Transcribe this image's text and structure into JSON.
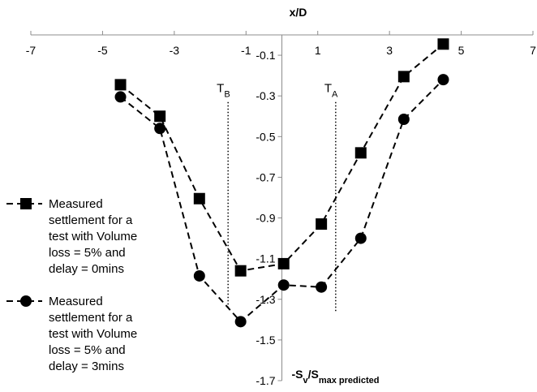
{
  "chart_data": {
    "type": "line",
    "xlabel": "x/D",
    "ylabel": {
      "prefix": "-S",
      "sub1": "v",
      "mid": "/S",
      "sub2": "max predicted"
    },
    "xlim": [
      -7,
      7
    ],
    "ylim": [
      -1.7,
      0
    ],
    "x_ticks": [
      -7,
      -5,
      -3,
      -1,
      1,
      3,
      5,
      7
    ],
    "x_tick_labels": [
      "-7",
      "-5",
      "-3",
      "-1",
      "1",
      "3",
      "5",
      "7"
    ],
    "y_ticks": [
      -0.1,
      -0.3,
      -0.5,
      -0.7,
      -0.9,
      -1.1,
      -1.3,
      -1.5,
      -1.7
    ],
    "y_tick_labels": [
      "-0.1",
      "-0.3",
      "-0.5",
      "-0.7",
      "-0.9",
      "-1.1",
      "-1.3",
      "-1.5",
      "-1.7"
    ],
    "annotations": [
      {
        "name": "tb",
        "main": "T",
        "sub": "B",
        "x": -1.5,
        "y_top": -0.33,
        "y_bottom": -1.35
      },
      {
        "name": "ta",
        "main": "T",
        "sub": "A",
        "x": 1.5,
        "y_top": -0.33,
        "y_bottom": -1.36
      }
    ],
    "legend_position": "left",
    "series": [
      {
        "marker": "square",
        "legend_lines": [
          "Measured",
          "settlement for a",
          "test with Volume",
          "loss = 5% and",
          "delay = 0mins"
        ],
        "x": [
          -4.5,
          -3.4,
          -2.3,
          -1.15,
          0.05,
          1.1,
          2.2,
          3.4,
          4.5
        ],
        "y": [
          -0.245,
          -0.4,
          -0.805,
          -1.16,
          -1.125,
          -0.93,
          -0.58,
          -0.205,
          -0.045
        ]
      },
      {
        "marker": "circle",
        "legend_lines": [
          "Measured",
          "settlement for a",
          "test with Volume",
          "loss = 5% and",
          "delay = 3mins"
        ],
        "x": [
          -4.5,
          -3.4,
          -2.3,
          -1.15,
          0.05,
          1.1,
          2.2,
          3.4,
          4.5
        ],
        "y": [
          -0.305,
          -0.46,
          -1.185,
          -1.41,
          -1.23,
          -1.24,
          -1.0,
          -0.415,
          -0.22
        ]
      }
    ]
  }
}
